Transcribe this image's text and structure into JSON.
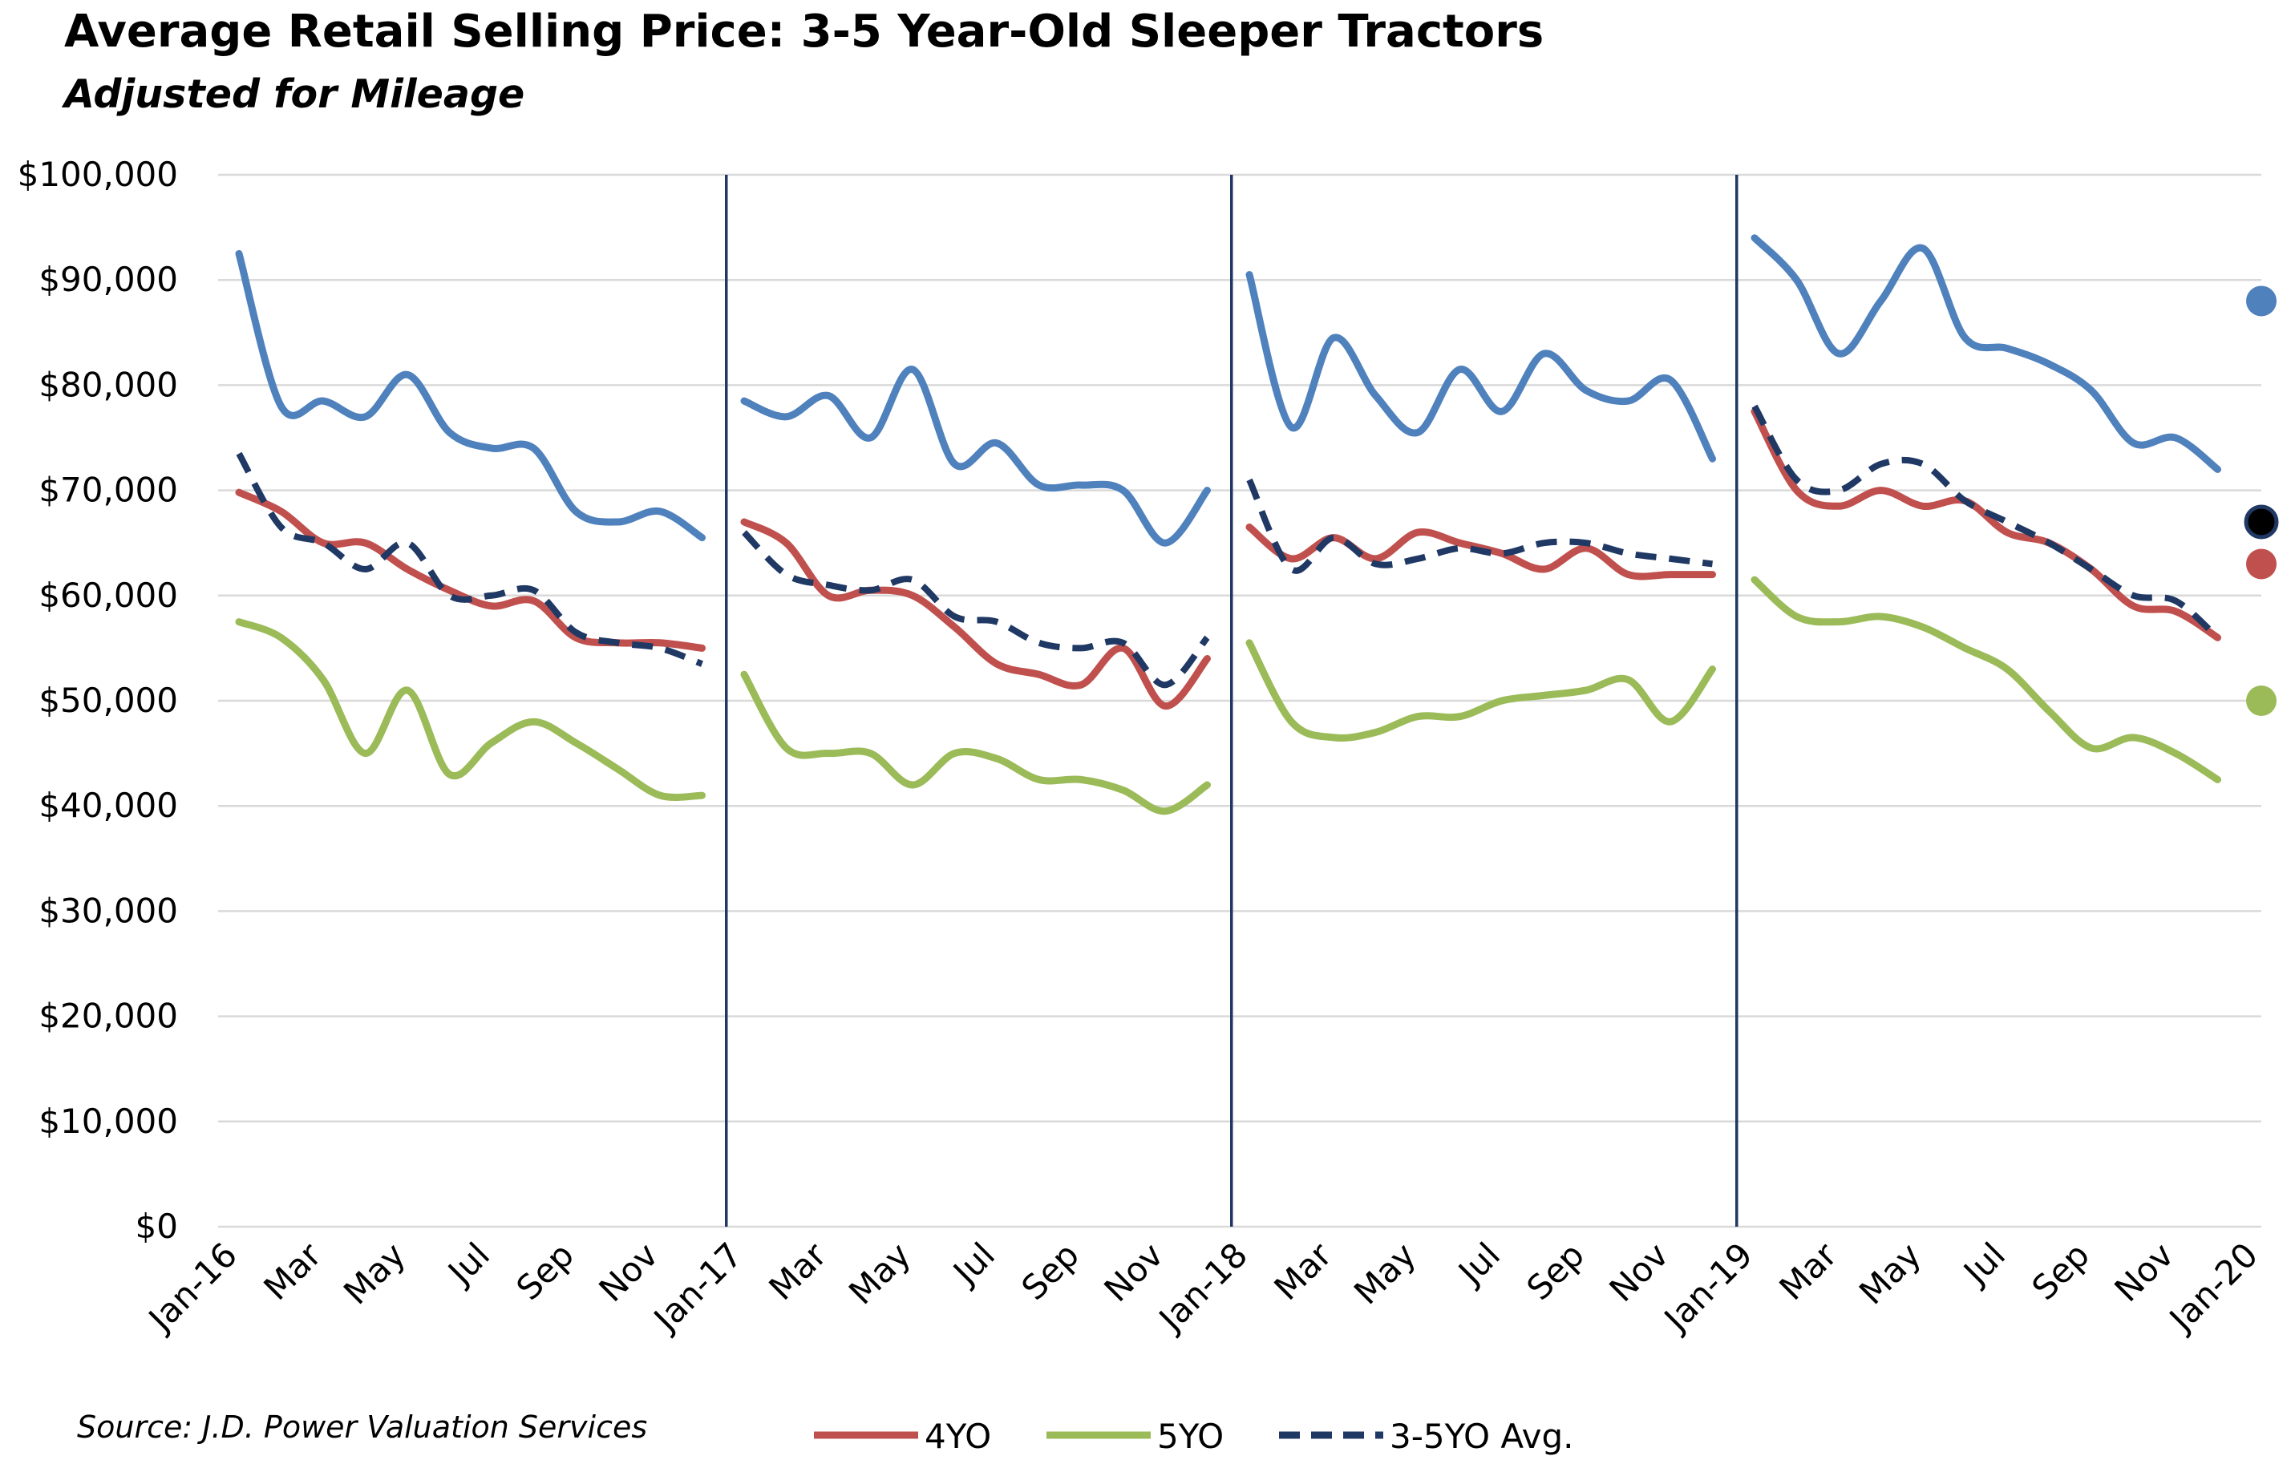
{
  "chart_data": {
    "type": "line",
    "title": "Average Retail Selling Price: 3-5 Year-Old  Sleeper Tractors",
    "subtitle": "Adjusted for Mileage",
    "source": "Source: J.D. Power Valuation Services",
    "xlabel": "",
    "ylabel": "",
    "ylim": [
      0,
      100000
    ],
    "yticks": [
      0,
      10000,
      20000,
      30000,
      40000,
      50000,
      60000,
      70000,
      80000,
      90000,
      100000
    ],
    "ytick_labels": [
      "$0",
      "$10,000",
      "$20,000",
      "$30,000",
      "$40,000",
      "$50,000",
      "$60,000",
      "$70,000",
      "$80,000",
      "$90,000",
      "$100,000"
    ],
    "xtick_labels": [
      "Jan-16",
      "Mar",
      "May",
      "Jul",
      "Sep",
      "Nov",
      "Jan-17",
      "Mar",
      "May",
      "Jul",
      "Sep",
      "Nov",
      "Jan-18",
      "Mar",
      "May",
      "Jul",
      "Sep",
      "Nov",
      "Jan-19",
      "Mar",
      "May",
      "Jul",
      "Sep",
      "Nov",
      "Jan-20"
    ],
    "year_labels": [
      "2016",
      "2017",
      "2018",
      "2019"
    ],
    "grid": true,
    "legend_position": "bottom",
    "years": [
      {
        "untitled_series": [
          92500,
          78000,
          78500,
          77000,
          81000,
          75500,
          74000,
          74000,
          68000,
          67000,
          68000,
          65500
        ],
        "4YO": [
          69800,
          68000,
          65000,
          65000,
          62500,
          60500,
          59000,
          59500,
          56000,
          55500,
          55500,
          55000
        ],
        "5YO": [
          57500,
          56000,
          52000,
          45000,
          51000,
          43000,
          46000,
          48000,
          46000,
          43500,
          41000,
          41000
        ],
        "3-5YO Avg.": [
          73500,
          66500,
          65000,
          62500,
          65000,
          60000,
          60000,
          60500,
          56500,
          55500,
          55000,
          53500
        ]
      },
      {
        "untitled_series": [
          78500,
          77000,
          79000,
          75000,
          81500,
          72500,
          74500,
          70500,
          70500,
          70000,
          65000,
          70000
        ],
        "4YO": [
          67000,
          65000,
          60000,
          60500,
          60000,
          57000,
          53500,
          52500,
          51500,
          55000,
          49500,
          54000
        ],
        "5YO": [
          52500,
          45500,
          45000,
          45000,
          42000,
          45000,
          44500,
          42500,
          42500,
          41500,
          39500,
          42000
        ],
        "3-5YO Avg.": [
          66000,
          62000,
          61000,
          60500,
          61500,
          58000,
          57500,
          55500,
          55000,
          55500,
          51500,
          56000
        ]
      },
      {
        "untitled_series": [
          90500,
          76000,
          84500,
          79000,
          75500,
          81500,
          77500,
          83000,
          79500,
          78500,
          80500,
          73000
        ],
        "4YO": [
          66500,
          63500,
          65500,
          63500,
          66000,
          65000,
          64000,
          62500,
          64500,
          62000,
          62000,
          62000
        ],
        "5YO": [
          55500,
          48000,
          46500,
          47000,
          48500,
          48500,
          50000,
          50500,
          51000,
          52000,
          48000,
          53000
        ],
        "3-5YO Avg.": [
          71000,
          62500,
          65500,
          63000,
          63500,
          64500,
          64000,
          65000,
          65000,
          64000,
          63500,
          63000
        ]
      },
      {
        "untitled_series": [
          94000,
          90000,
          83000,
          88000,
          93000,
          84500,
          83500,
          82000,
          79500,
          74500,
          75000,
          72000
        ],
        "4YO": [
          77500,
          70000,
          68500,
          70000,
          68500,
          69000,
          66000,
          65000,
          62500,
          59000,
          58500,
          56000
        ],
        "5YO": [
          61500,
          58000,
          57500,
          58000,
          57000,
          55000,
          53000,
          49000,
          45500,
          46500,
          45000,
          42500
        ],
        "3-5YO Avg.": [
          78000,
          71000,
          70000,
          72500,
          72500,
          69000,
          67000,
          65000,
          62500,
          60000,
          59500,
          56000
        ]
      }
    ],
    "jan20_points": [
      {
        "series": "untitled_series",
        "value": 88000
      },
      {
        "series": "3-5YO Avg.",
        "value": 67000
      },
      {
        "series": "4YO",
        "value": 63000
      },
      {
        "series": "5YO",
        "value": 50000
      }
    ],
    "series": [
      {
        "key": "untitled_series",
        "color": "#4f81bd",
        "style": "solid"
      },
      {
        "key": "4YO",
        "name": "4YO",
        "color": "#c0504d",
        "style": "solid"
      },
      {
        "key": "5YO",
        "name": "5YO",
        "color": "#9bbb59",
        "style": "solid"
      },
      {
        "key": "3-5YO Avg.",
        "name": "3-5YO Avg.",
        "color": "#1f3864",
        "style": "dashed"
      }
    ],
    "jan20_avg_marker_color": "#000000",
    "separator_color": "#1f3864",
    "grid_color": "#d9d9d9"
  }
}
